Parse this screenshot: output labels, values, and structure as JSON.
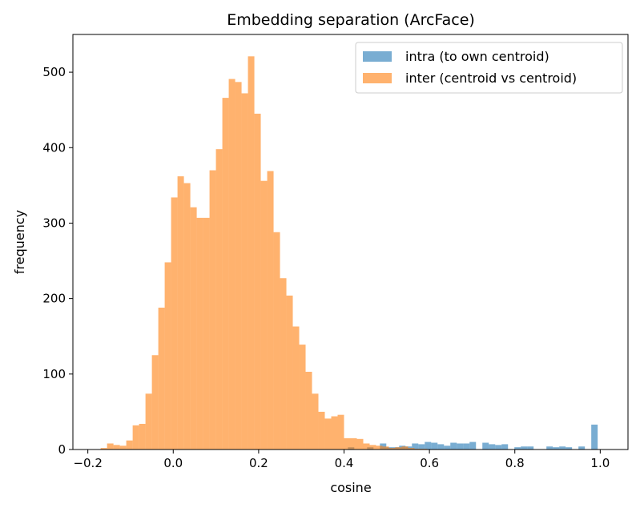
{
  "chart_data": {
    "type": "bar",
    "title": "Embedding separation (ArcFace)",
    "xlabel": "cosine",
    "ylabel": "frequency",
    "xlim": [
      -0.235,
      1.065
    ],
    "ylim": [
      0,
      550
    ],
    "xticks": [
      -0.2,
      0.0,
      0.2,
      0.4,
      0.6,
      0.8,
      1.0
    ],
    "xtick_labels": [
      "−0.2",
      "0.0",
      "0.2",
      "0.4",
      "0.6",
      "0.8",
      "1.0"
    ],
    "yticks": [
      0,
      100,
      200,
      300,
      400,
      500
    ],
    "ytick_labels": [
      "0",
      "100",
      "200",
      "300",
      "400",
      "500"
    ],
    "legend_position": "top-right",
    "grid": false,
    "series": [
      {
        "name": "intra (to own centroid)",
        "color": "#1f77b4",
        "alpha": 0.6,
        "bins": [
          {
            "x0": 0.409,
            "x1": 0.424,
            "count": 3
          },
          {
            "x0": 0.454,
            "x1": 0.469,
            "count": 3
          },
          {
            "x0": 0.484,
            "x1": 0.499,
            "count": 8
          },
          {
            "x0": 0.499,
            "x1": 0.514,
            "count": 3
          },
          {
            "x0": 0.514,
            "x1": 0.529,
            "count": 3
          },
          {
            "x0": 0.529,
            "x1": 0.544,
            "count": 5
          },
          {
            "x0": 0.544,
            "x1": 0.559,
            "count": 4
          },
          {
            "x0": 0.559,
            "x1": 0.574,
            "count": 8
          },
          {
            "x0": 0.574,
            "x1": 0.589,
            "count": 7
          },
          {
            "x0": 0.589,
            "x1": 0.604,
            "count": 10
          },
          {
            "x0": 0.604,
            "x1": 0.619,
            "count": 9
          },
          {
            "x0": 0.619,
            "x1": 0.634,
            "count": 7
          },
          {
            "x0": 0.634,
            "x1": 0.649,
            "count": 5
          },
          {
            "x0": 0.649,
            "x1": 0.664,
            "count": 9
          },
          {
            "x0": 0.664,
            "x1": 0.679,
            "count": 8
          },
          {
            "x0": 0.679,
            "x1": 0.694,
            "count": 8
          },
          {
            "x0": 0.694,
            "x1": 0.709,
            "count": 10
          },
          {
            "x0": 0.724,
            "x1": 0.739,
            "count": 9
          },
          {
            "x0": 0.739,
            "x1": 0.754,
            "count": 7
          },
          {
            "x0": 0.754,
            "x1": 0.769,
            "count": 6
          },
          {
            "x0": 0.769,
            "x1": 0.784,
            "count": 7
          },
          {
            "x0": 0.799,
            "x1": 0.814,
            "count": 3
          },
          {
            "x0": 0.814,
            "x1": 0.829,
            "count": 4
          },
          {
            "x0": 0.829,
            "x1": 0.844,
            "count": 4
          },
          {
            "x0": 0.874,
            "x1": 0.889,
            "count": 4
          },
          {
            "x0": 0.889,
            "x1": 0.904,
            "count": 3
          },
          {
            "x0": 0.904,
            "x1": 0.919,
            "count": 4
          },
          {
            "x0": 0.919,
            "x1": 0.934,
            "count": 3
          },
          {
            "x0": 0.949,
            "x1": 0.964,
            "count": 4
          },
          {
            "x0": 0.979,
            "x1": 0.994,
            "count": 33
          }
        ]
      },
      {
        "name": "inter (centroid vs centroid)",
        "color": "#ff7f0e",
        "alpha": 0.6,
        "bins": [
          {
            "x0": -0.17,
            "x1": -0.155,
            "count": 2
          },
          {
            "x0": -0.155,
            "x1": -0.14,
            "count": 8
          },
          {
            "x0": -0.14,
            "x1": -0.125,
            "count": 6
          },
          {
            "x0": -0.125,
            "x1": -0.11,
            "count": 5
          },
          {
            "x0": -0.11,
            "x1": -0.095,
            "count": 12
          },
          {
            "x0": -0.095,
            "x1": -0.08,
            "count": 32
          },
          {
            "x0": -0.08,
            "x1": -0.065,
            "count": 34
          },
          {
            "x0": -0.065,
            "x1": -0.05,
            "count": 74
          },
          {
            "x0": -0.05,
            "x1": -0.035,
            "count": 125
          },
          {
            "x0": -0.035,
            "x1": -0.02,
            "count": 188
          },
          {
            "x0": -0.02,
            "x1": -0.005,
            "count": 248
          },
          {
            "x0": -0.005,
            "x1": 0.01,
            "count": 334
          },
          {
            "x0": 0.01,
            "x1": 0.025,
            "count": 362
          },
          {
            "x0": 0.025,
            "x1": 0.04,
            "count": 353
          },
          {
            "x0": 0.04,
            "x1": 0.055,
            "count": 321
          },
          {
            "x0": 0.055,
            "x1": 0.07,
            "count": 307
          },
          {
            "x0": 0.07,
            "x1": 0.085,
            "count": 307
          },
          {
            "x0": 0.085,
            "x1": 0.1,
            "count": 370
          },
          {
            "x0": 0.1,
            "x1": 0.115,
            "count": 398
          },
          {
            "x0": 0.115,
            "x1": 0.13,
            "count": 466
          },
          {
            "x0": 0.13,
            "x1": 0.145,
            "count": 491
          },
          {
            "x0": 0.145,
            "x1": 0.16,
            "count": 487
          },
          {
            "x0": 0.16,
            "x1": 0.175,
            "count": 472
          },
          {
            "x0": 0.175,
            "x1": 0.19,
            "count": 521
          },
          {
            "x0": 0.19,
            "x1": 0.205,
            "count": 445
          },
          {
            "x0": 0.205,
            "x1": 0.22,
            "count": 356
          },
          {
            "x0": 0.22,
            "x1": 0.235,
            "count": 369
          },
          {
            "x0": 0.235,
            "x1": 0.25,
            "count": 288
          },
          {
            "x0": 0.25,
            "x1": 0.265,
            "count": 227
          },
          {
            "x0": 0.265,
            "x1": 0.28,
            "count": 204
          },
          {
            "x0": 0.28,
            "x1": 0.295,
            "count": 163
          },
          {
            "x0": 0.295,
            "x1": 0.31,
            "count": 139
          },
          {
            "x0": 0.31,
            "x1": 0.325,
            "count": 103
          },
          {
            "x0": 0.325,
            "x1": 0.34,
            "count": 74
          },
          {
            "x0": 0.34,
            "x1": 0.355,
            "count": 50
          },
          {
            "x0": 0.355,
            "x1": 0.37,
            "count": 41
          },
          {
            "x0": 0.37,
            "x1": 0.385,
            "count": 44
          },
          {
            "x0": 0.385,
            "x1": 0.4,
            "count": 46
          },
          {
            "x0": 0.4,
            "x1": 0.415,
            "count": 15
          },
          {
            "x0": 0.415,
            "x1": 0.43,
            "count": 15
          },
          {
            "x0": 0.43,
            "x1": 0.445,
            "count": 14
          },
          {
            "x0": 0.445,
            "x1": 0.46,
            "count": 8
          },
          {
            "x0": 0.46,
            "x1": 0.475,
            "count": 6
          },
          {
            "x0": 0.475,
            "x1": 0.49,
            "count": 5
          },
          {
            "x0": 0.49,
            "x1": 0.505,
            "count": 4
          },
          {
            "x0": 0.505,
            "x1": 0.52,
            "count": 2
          },
          {
            "x0": 0.52,
            "x1": 0.535,
            "count": 3
          },
          {
            "x0": 0.535,
            "x1": 0.55,
            "count": 4
          },
          {
            "x0": 0.55,
            "x1": 0.565,
            "count": 2
          },
          {
            "x0": 0.565,
            "x1": 0.58,
            "count": 1
          },
          {
            "x0": 0.58,
            "x1": 0.595,
            "count": 1
          }
        ]
      }
    ]
  }
}
